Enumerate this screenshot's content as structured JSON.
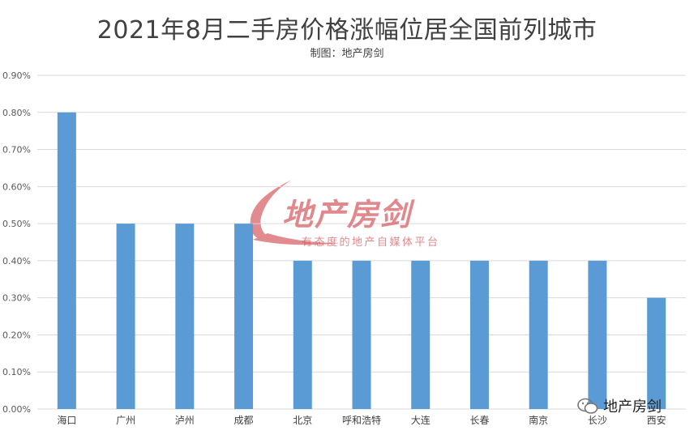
{
  "chart_data": {
    "type": "bar",
    "title": "2021年8月二手房价格涨幅位居全国前列城市",
    "subtitle": "制图：地产房剑",
    "categories": [
      "海口",
      "广州",
      "泸州",
      "成都",
      "北京",
      "呼和浩特",
      "大连",
      "长春",
      "南京",
      "长沙",
      "西安"
    ],
    "values": [
      0.8,
      0.5,
      0.5,
      0.5,
      0.4,
      0.4,
      0.4,
      0.4,
      0.4,
      0.4,
      0.3
    ],
    "value_unit": "%",
    "ylim": [
      0,
      0.9
    ],
    "yticks": [
      "0.00%",
      "0.10%",
      "0.20%",
      "0.30%",
      "0.40%",
      "0.50%",
      "0.60%",
      "0.70%",
      "0.80%",
      "0.90%"
    ],
    "grid": true,
    "bar_color": "#5b9bd5",
    "xlabel": "",
    "ylabel": ""
  },
  "watermark": {
    "logo_text": "地产房剑",
    "slogan": "有态度的地产自媒体平台",
    "corner_label": "地产房剑",
    "color": "#d55a60"
  }
}
